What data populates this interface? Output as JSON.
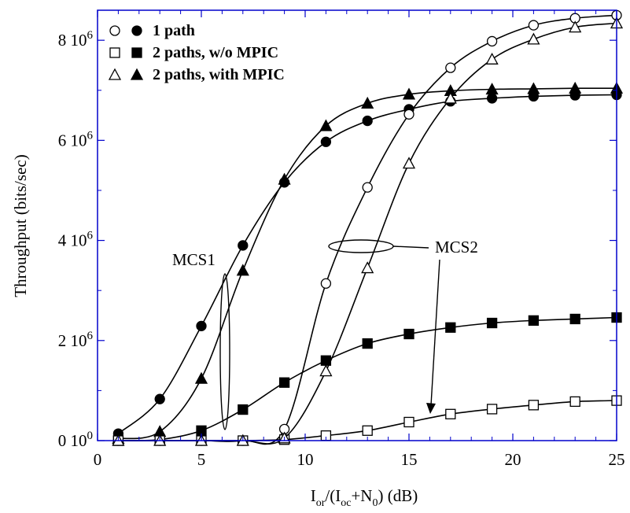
{
  "chart_data": {
    "type": "line",
    "xlabel": "I_or/(I_oc+N_0) (dB)",
    "ylabel": "Throughput (bits/sec)",
    "xlim": [
      0,
      25
    ],
    "ylim": [
      0,
      8600000
    ],
    "x_ticks": [
      0,
      5,
      10,
      15,
      20,
      25
    ],
    "y_ticks": [
      {
        "value": 0,
        "mantissa": "0",
        "exponent": "0"
      },
      {
        "value": 2000000,
        "mantissa": "2",
        "exponent": "6"
      },
      {
        "value": 4000000,
        "mantissa": "4",
        "exponent": "6"
      },
      {
        "value": 6000000,
        "mantissa": "6",
        "exponent": "6"
      },
      {
        "value": 8000000,
        "mantissa": "8",
        "exponent": "6"
      }
    ],
    "grid": false,
    "legend_position": "top-left",
    "legend": [
      {
        "label": "1 path",
        "open_marker": "circle",
        "filled_marker": "circle"
      },
      {
        "label": "2 paths, w/o MPIC",
        "open_marker": "square",
        "filled_marker": "square"
      },
      {
        "label": "2 paths, with MPIC",
        "open_marker": "triangle",
        "filled_marker": "triangle"
      }
    ],
    "series": [
      {
        "config": "1 path",
        "scheme": "MCS1",
        "marker": "circle",
        "filled": true,
        "x": [
          1,
          3,
          5,
          7,
          9,
          11,
          13,
          15,
          17,
          19,
          21,
          23,
          25
        ],
        "y": [
          140000,
          830000,
          2290000,
          3900000,
          5160000,
          5970000,
          6390000,
          6620000,
          6780000,
          6840000,
          6880000,
          6900000,
          6910000
        ]
      },
      {
        "config": "2 paths, w/o MPIC",
        "scheme": "MCS1",
        "marker": "square",
        "filled": true,
        "x": [
          1,
          3,
          5,
          7,
          9,
          11,
          13,
          15,
          17,
          19,
          21,
          23,
          25
        ],
        "y": [
          0,
          20000,
          200000,
          620000,
          1160000,
          1600000,
          1940000,
          2130000,
          2260000,
          2350000,
          2400000,
          2430000,
          2460000
        ]
      },
      {
        "config": "2 paths, with MPIC",
        "scheme": "MCS1",
        "marker": "triangle",
        "filled": true,
        "x": [
          1,
          3,
          5,
          7,
          9,
          11,
          13,
          15,
          17,
          19,
          21,
          23,
          25
        ],
        "y": [
          40000,
          180000,
          1240000,
          3400000,
          5220000,
          6290000,
          6740000,
          6920000,
          6990000,
          7020000,
          7030000,
          7040000,
          7040000
        ]
      },
      {
        "config": "1 path",
        "scheme": "MCS2",
        "marker": "circle",
        "filled": false,
        "x": [
          1,
          3,
          5,
          7,
          9,
          11,
          13,
          15,
          17,
          19,
          21,
          23,
          25
        ],
        "y": [
          0,
          0,
          0,
          0,
          230000,
          3140000,
          5060000,
          6520000,
          7450000,
          7980000,
          8300000,
          8440000,
          8500000
        ]
      },
      {
        "config": "2 paths, w/o MPIC",
        "scheme": "MCS2",
        "marker": "square",
        "filled": false,
        "x": [
          1,
          3,
          5,
          7,
          9,
          11,
          13,
          15,
          17,
          19,
          21,
          23,
          25
        ],
        "y": [
          0,
          0,
          0,
          0,
          20000,
          100000,
          200000,
          370000,
          530000,
          630000,
          710000,
          780000,
          800000
        ]
      },
      {
        "config": "2 paths, with MPIC",
        "scheme": "MCS2",
        "marker": "triangle",
        "filled": false,
        "x": [
          1,
          3,
          5,
          7,
          9,
          11,
          13,
          15,
          17,
          19,
          21,
          23,
          25
        ],
        "y": [
          0,
          0,
          0,
          0,
          50000,
          1390000,
          3450000,
          5540000,
          6840000,
          7620000,
          8020000,
          8260000,
          8340000
        ]
      }
    ],
    "annotations": [
      {
        "text": "MCS1",
        "group": "MCS1"
      },
      {
        "text": "MCS2",
        "group": "MCS2"
      }
    ]
  },
  "colors": {
    "axis_frame": "#0000cc",
    "series_line": "#000000",
    "background": "#ffffff"
  }
}
